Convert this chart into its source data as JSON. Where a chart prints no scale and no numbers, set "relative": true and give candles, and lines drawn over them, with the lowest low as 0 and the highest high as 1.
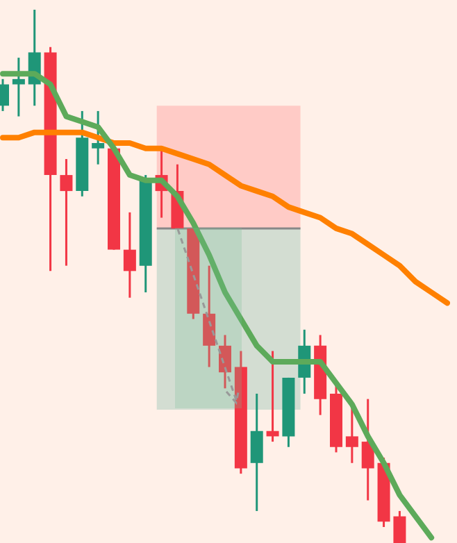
{
  "chart_data": {
    "type": "candlestick",
    "relative": true,
    "marker": "none",
    "categories": [
      null,
      null,
      null,
      null,
      null,
      null,
      null,
      null,
      null,
      null,
      null,
      null,
      null,
      null,
      null,
      null,
      null,
      null,
      null,
      null,
      null,
      null,
      null,
      null,
      null,
      null,
      null,
      null,
      null
    ],
    "ohlc": [
      [
        0.82,
        0.87,
        0.81,
        0.86
      ],
      [
        0.86,
        0.91,
        0.8,
        0.87
      ],
      [
        0.86,
        1,
        0.82,
        0.92
      ],
      [
        0.92,
        0.93,
        0.51,
        0.69
      ],
      [
        0.69,
        0.72,
        0.52,
        0.66
      ],
      [
        0.66,
        0.81,
        0.65,
        0.76
      ],
      [
        0.74,
        0.81,
        0.71,
        0.75
      ],
      [
        0.74,
        0.74,
        0.55,
        0.55
      ],
      [
        0.55,
        0.62,
        0.46,
        0.51
      ],
      [
        0.52,
        0.69,
        0.47,
        0.68
      ],
      [
        0.69,
        0.74,
        0.61,
        0.66
      ],
      [
        0.66,
        0.71,
        0.59,
        0.59
      ],
      [
        0.59,
        0.59,
        0.42,
        0.43
      ],
      [
        0.43,
        0.52,
        0.33,
        0.37
      ],
      [
        0.37,
        0.39,
        0.29,
        0.32
      ],
      [
        0.33,
        0.36,
        0.13,
        0.14
      ],
      [
        0.15,
        0.28,
        0.06,
        0.21
      ],
      [
        0.21,
        0.36,
        0.19,
        0.2
      ],
      [
        0.2,
        0.31,
        0.18,
        0.31
      ],
      [
        0.31,
        0.4,
        0.28,
        0.37
      ],
      [
        0.37,
        0.39,
        0.24,
        0.27
      ],
      [
        0.28,
        0.3,
        0.17,
        0.18
      ],
      [
        0.2,
        0.26,
        0.15,
        0.18
      ],
      [
        0.19,
        0.27,
        0.08,
        0.14
      ],
      [
        0.15,
        0.16,
        0.03,
        0.04
      ],
      [
        0.05,
        0.06,
        0,
        0
      ],
      null,
      null,
      null
    ],
    "colors": [
      "#1f9678",
      "#1f9678",
      "#1f9678",
      "#f23645",
      "#f23645",
      "#1f9678",
      "#1f9678",
      "#f23645",
      "#f23645",
      "#1f9678",
      "#f23645",
      "#f23645",
      "#f23645",
      "#f23645",
      "#f23645",
      "#f23645",
      "#1f9678",
      "#f23645",
      "#1f9678",
      "#1f9678",
      "#f23645",
      "#f23645",
      "#f23645",
      "#f23645",
      "#f23645",
      "#f23645",
      null,
      null,
      null
    ],
    "series": [
      {
        "type": "line",
        "color": "#5daa5a",
        "values": [
          0.88,
          0.88,
          0.88,
          0.86,
          0.8,
          0.79,
          0.78,
          0.74,
          0.69,
          0.68,
          0.68,
          0.65,
          0.6,
          0.54,
          0.47,
          0.42,
          0.37,
          0.34,
          0.34,
          0.34,
          0.34,
          0.3,
          0.26,
          0.2,
          0.15,
          0.09,
          0.05,
          0.01,
          null
        ]
      },
      {
        "type": "line",
        "color": "#ff8000",
        "values": [
          0.76,
          0.76,
          0.77,
          0.77,
          0.77,
          0.77,
          0.76,
          0.75,
          0.75,
          0.74,
          0.74,
          0.73,
          0.72,
          0.71,
          0.69,
          0.67,
          0.66,
          0.65,
          0.63,
          0.62,
          0.61,
          0.59,
          0.58,
          0.56,
          0.54,
          0.52,
          0.49,
          0.47,
          0.45
        ]
      }
    ],
    "ref_lines": [
      {
        "axis": "y",
        "value": 0.59,
        "color": "#888888"
      }
    ],
    "bands": [
      {
        "axis": "y",
        "from": 0.59,
        "to": 0.82,
        "color": "#ffcbc6"
      },
      {
        "axis": "y",
        "from": 0.25,
        "to": 0.59,
        "color": "#d3ddd2"
      }
    ]
  }
}
